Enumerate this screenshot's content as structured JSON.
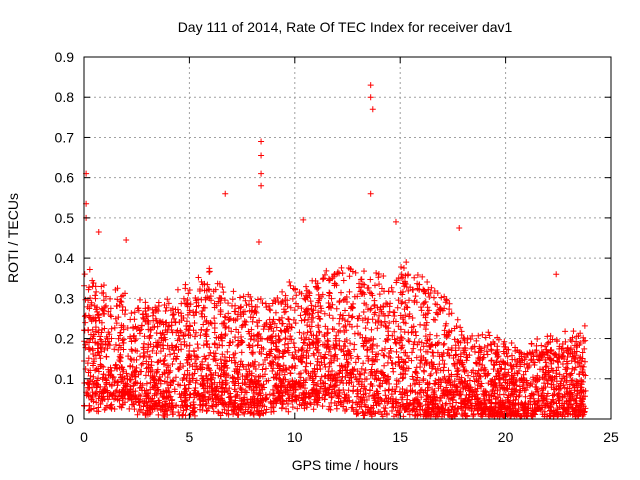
{
  "chart_data": {
    "type": "scatter",
    "title": "Day 111 of 2014, Rate Of TEC Index for receiver dav1",
    "xlabel": "GPS time / hours",
    "ylabel": "ROTI / TECUs",
    "xlim": [
      0,
      25
    ],
    "ylim": [
      0,
      0.9
    ],
    "xticks": [
      0,
      5,
      10,
      15,
      20,
      25
    ],
    "yticks": [
      0,
      0.1,
      0.2,
      0.3,
      0.4,
      0.5,
      0.6,
      0.7,
      0.8,
      0.9
    ],
    "xtick_labels": [
      "0",
      "5",
      "10",
      "15",
      "20",
      "25"
    ],
    "ytick_labels": [
      "0",
      "0.1",
      "0.2",
      "0.3",
      "0.4",
      "0.5",
      "0.6",
      "0.7",
      "0.8",
      "0.9"
    ],
    "grid": true,
    "marker": "+",
    "color": "#ff0000",
    "x_range_of_samples": [
      0,
      23.8
    ],
    "notable_points": [
      {
        "x": 0.1,
        "y": 0.61
      },
      {
        "x": 0.1,
        "y": 0.535
      },
      {
        "x": 0.1,
        "y": 0.5
      },
      {
        "x": 0.7,
        "y": 0.465
      },
      {
        "x": 2.0,
        "y": 0.445
      },
      {
        "x": 6.7,
        "y": 0.56
      },
      {
        "x": 8.4,
        "y": 0.69
      },
      {
        "x": 8.4,
        "y": 0.655
      },
      {
        "x": 8.4,
        "y": 0.61
      },
      {
        "x": 8.4,
        "y": 0.58
      },
      {
        "x": 8.3,
        "y": 0.44
      },
      {
        "x": 10.4,
        "y": 0.495
      },
      {
        "x": 13.6,
        "y": 0.83
      },
      {
        "x": 13.6,
        "y": 0.8
      },
      {
        "x": 13.7,
        "y": 0.77
      },
      {
        "x": 13.6,
        "y": 0.56
      },
      {
        "x": 14.8,
        "y": 0.49
      },
      {
        "x": 17.8,
        "y": 0.475
      },
      {
        "x": 22.4,
        "y": 0.36
      }
    ],
    "envelope": {
      "hours": [
        0,
        1,
        2,
        3,
        4,
        5,
        6,
        7,
        8,
        9,
        10,
        11,
        12,
        13,
        14,
        15,
        16,
        17,
        18,
        19,
        20,
        21,
        22,
        23,
        23.8
      ],
      "typical_max": [
        0.38,
        0.32,
        0.3,
        0.28,
        0.3,
        0.33,
        0.36,
        0.3,
        0.32,
        0.3,
        0.35,
        0.36,
        0.38,
        0.38,
        0.36,
        0.38,
        0.36,
        0.33,
        0.22,
        0.2,
        0.19,
        0.18,
        0.2,
        0.2,
        0.22
      ],
      "typical_min": [
        0.03,
        0.04,
        0.04,
        0.02,
        0.02,
        0.02,
        0.03,
        0.02,
        0.02,
        0.03,
        0.04,
        0.04,
        0.04,
        0.02,
        0.02,
        0.02,
        0.01,
        0.01,
        0.01,
        0.01,
        0.01,
        0.01,
        0.01,
        0.01,
        0.01
      ]
    }
  }
}
